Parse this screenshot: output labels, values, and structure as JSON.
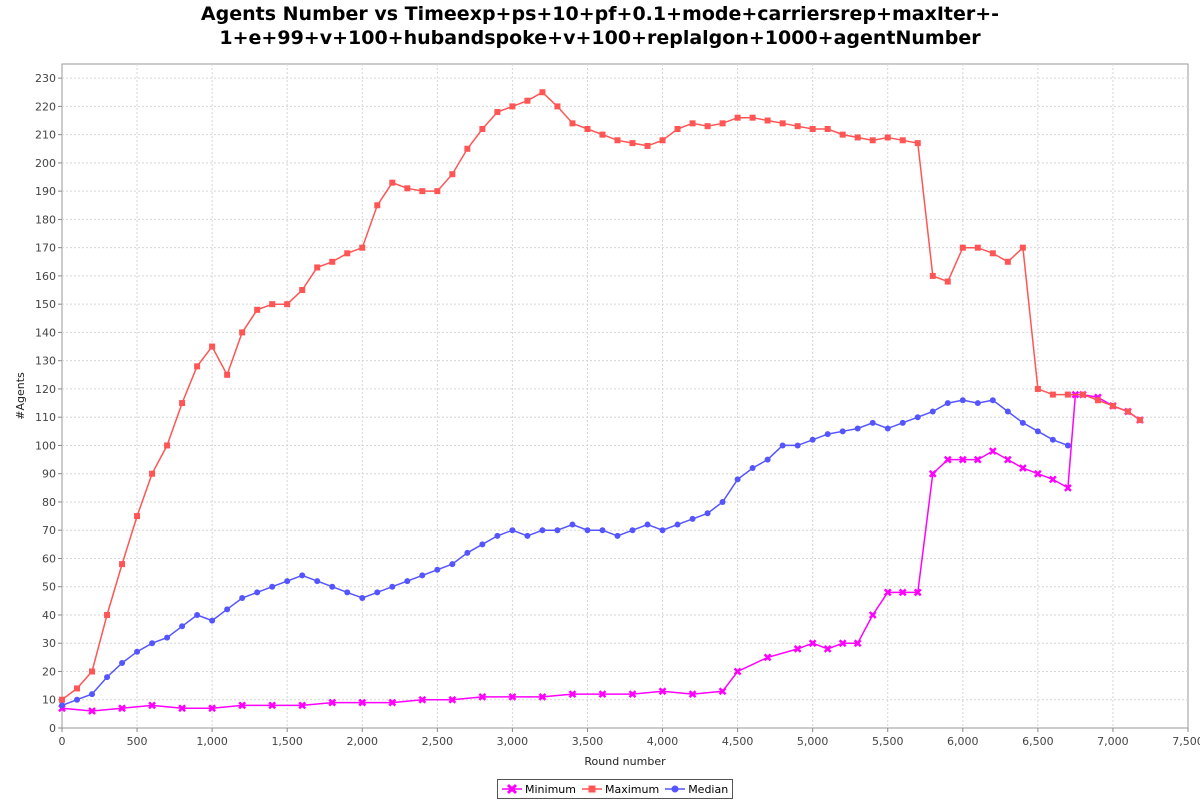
{
  "chart_data": {
    "type": "line",
    "title_line1": "Agents Number vs Timeexp+ps+10+pf+0.1+mode+carriersrep+maxIter+-",
    "title_line2": "1+e+99+v+100+hubandspoke+v+100+replalgon+1000+agentNumber",
    "xlabel": "Round number",
    "ylabel": "#Agents",
    "xlim": [
      0,
      7500
    ],
    "ylim": [
      0,
      235
    ],
    "x_ticks": [
      0,
      500,
      1000,
      1500,
      2000,
      2500,
      3000,
      3500,
      4000,
      4500,
      5000,
      5500,
      6000,
      6500,
      7000,
      7500
    ],
    "x_tick_labels": [
      "0",
      "500",
      "1,000",
      "1,500",
      "2,000",
      "2,500",
      "3,000",
      "3,500",
      "4,000",
      "4,500",
      "5,000",
      "5,500",
      "6,000",
      "6,500",
      "7,000",
      "7,500"
    ],
    "y_ticks": [
      0,
      10,
      20,
      30,
      40,
      50,
      60,
      70,
      80,
      90,
      100,
      110,
      120,
      130,
      140,
      150,
      160,
      170,
      180,
      190,
      200,
      210,
      220,
      230
    ],
    "grid": true,
    "legend_position": "bottom-center",
    "series": [
      {
        "name": "Minimum",
        "color": "#ff00ff",
        "marker": "x",
        "x": [
          0,
          200,
          400,
          600,
          800,
          1000,
          1200,
          1400,
          1600,
          1800,
          2000,
          2200,
          2400,
          2600,
          2800,
          3000,
          3200,
          3400,
          3600,
          3800,
          4000,
          4200,
          4400,
          4500,
          4700,
          4900,
          5000,
          5100,
          5200,
          5300,
          5400,
          5500,
          5600,
          5700,
          5800,
          5900,
          6000,
          6100,
          6200,
          6300,
          6400,
          6500,
          6600,
          6700,
          6750,
          6800,
          6900,
          7000,
          7100,
          7180
        ],
        "y": [
          7,
          6,
          7,
          8,
          7,
          7,
          8,
          8,
          8,
          9,
          9,
          9,
          10,
          10,
          11,
          11,
          11,
          12,
          12,
          12,
          13,
          12,
          13,
          20,
          25,
          28,
          30,
          28,
          30,
          30,
          40,
          48,
          48,
          48,
          90,
          95,
          95,
          95,
          98,
          95,
          92,
          90,
          88,
          85,
          118,
          118,
          117,
          114,
          112,
          109
        ]
      },
      {
        "name": "Maximum",
        "color": "#ff5555",
        "marker": "square",
        "x": [
          0,
          100,
          200,
          300,
          400,
          500,
          600,
          700,
          800,
          900,
          1000,
          1100,
          1200,
          1300,
          1400,
          1500,
          1600,
          1700,
          1800,
          1900,
          2000,
          2100,
          2200,
          2300,
          2400,
          2500,
          2600,
          2700,
          2800,
          2900,
          3000,
          3100,
          3200,
          3300,
          3400,
          3500,
          3600,
          3700,
          3800,
          3900,
          4000,
          4100,
          4200,
          4300,
          4400,
          4500,
          4600,
          4700,
          4800,
          4900,
          5000,
          5100,
          5200,
          5300,
          5400,
          5500,
          5600,
          5700,
          5800,
          5900,
          6000,
          6100,
          6200,
          6300,
          6400,
          6500,
          6600,
          6700,
          6800,
          6900,
          7000,
          7100,
          7180
        ],
        "y": [
          10,
          14,
          20,
          40,
          58,
          75,
          90,
          100,
          115,
          128,
          135,
          125,
          140,
          148,
          150,
          150,
          155,
          163,
          165,
          168,
          170,
          185,
          193,
          191,
          190,
          190,
          196,
          205,
          212,
          218,
          220,
          222,
          225,
          220,
          214,
          212,
          210,
          208,
          207,
          206,
          208,
          212,
          214,
          213,
          214,
          216,
          216,
          215,
          214,
          213,
          212,
          212,
          210,
          209,
          208,
          209,
          208,
          207,
          160,
          158,
          170,
          170,
          168,
          165,
          170,
          120,
          118,
          118,
          118,
          116,
          114,
          112,
          109
        ]
      },
      {
        "name": "Median",
        "color": "#5555ff",
        "marker": "circle",
        "x": [
          0,
          100,
          200,
          300,
          400,
          500,
          600,
          700,
          800,
          900,
          1000,
          1100,
          1200,
          1300,
          1400,
          1500,
          1600,
          1700,
          1800,
          1900,
          2000,
          2100,
          2200,
          2300,
          2400,
          2500,
          2600,
          2700,
          2800,
          2900,
          3000,
          3100,
          3200,
          3300,
          3400,
          3500,
          3600,
          3700,
          3800,
          3900,
          4000,
          4100,
          4200,
          4300,
          4400,
          4500,
          4600,
          4700,
          4800,
          4900,
          5000,
          5100,
          5200,
          5300,
          5400,
          5500,
          5600,
          5700,
          5800,
          5900,
          6000,
          6100,
          6200,
          6300,
          6400,
          6500,
          6600,
          6700
        ],
        "y": [
          8,
          10,
          12,
          18,
          23,
          27,
          30,
          32,
          36,
          40,
          38,
          42,
          46,
          48,
          50,
          52,
          54,
          52,
          50,
          48,
          46,
          48,
          50,
          52,
          54,
          56,
          58,
          62,
          65,
          68,
          70,
          68,
          70,
          70,
          72,
          70,
          70,
          68,
          70,
          72,
          70,
          72,
          74,
          76,
          80,
          88,
          92,
          95,
          100,
          100,
          102,
          104,
          105,
          106,
          108,
          106,
          108,
          110,
          112,
          115,
          116,
          115,
          116,
          112,
          108,
          105,
          102,
          100
        ]
      }
    ]
  }
}
